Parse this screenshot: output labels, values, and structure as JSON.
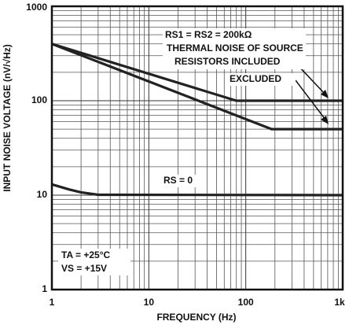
{
  "chart_data": {
    "type": "line",
    "x_label": "FREQUENCY (Hz)",
    "y_label": "INPUT NOISE VOLTAGE (nV/√Hz)",
    "xlog": true,
    "ylog": true,
    "grid": true,
    "xlim": [
      1,
      1000
    ],
    "ylim": [
      1,
      1000
    ],
    "xticks": [
      1,
      10,
      100,
      {
        "value": 1000,
        "label": "1k"
      }
    ],
    "yticks": [
      1,
      10,
      100,
      1000
    ],
    "series": [
      {
        "color": "#222222",
        "x": [
          1,
          80,
          1000
        ],
        "values": [
          400,
          100,
          100
        ]
      },
      {
        "color": "#222222",
        "x": [
          1,
          185,
          1000
        ],
        "values": [
          400,
          50,
          50
        ]
      },
      {
        "color": "#222222",
        "x": [
          1,
          1.5,
          2,
          3,
          1000
        ],
        "values": [
          13,
          11.5,
          10.7,
          10.1,
          10
        ]
      }
    ],
    "annotations": [
      "RS1 = RS2 = 200kΩ",
      "THERMAL NOISE OF SOURCE",
      "RESISTORS INCLUDED",
      "EXCLUDED",
      "RS = 0",
      "TA = +25°C",
      "VS = +15V"
    ]
  }
}
